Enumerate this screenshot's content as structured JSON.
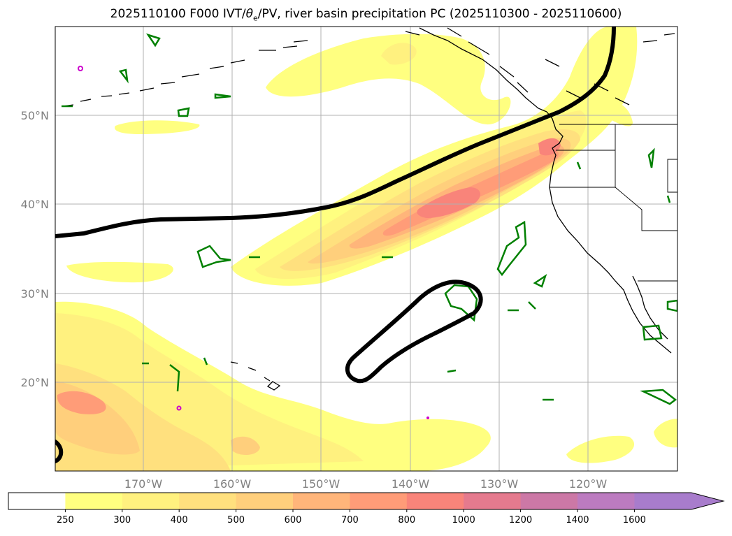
{
  "figure": {
    "title_pre": "2025110100 F000 IVT/",
    "title_theta": "θ",
    "title_sub": "e",
    "title_post": "/PV, river basin precipitation PC (2025110300 - 2025110600)"
  },
  "axes": {
    "lon_labels": [
      "170°W",
      "160°W",
      "150°W",
      "140°W",
      "130°W",
      "120°W"
    ],
    "lat_labels": [
      "50°N",
      "40°N",
      "30°N",
      "20°N"
    ],
    "lon_range": [
      -180,
      -110
    ],
    "lat_range": [
      10,
      60
    ]
  },
  "colorbar": {
    "ticks": [
      "250",
      "300",
      "400",
      "500",
      "600",
      "700",
      "800",
      "1000",
      "1200",
      "1400",
      "1600"
    ],
    "colors": [
      "#ffffff",
      "#ffff80",
      "#fff17f",
      "#ffe07e",
      "#ffcf7c",
      "#ffb57a",
      "#ff9c78",
      "#f9847a",
      "#e57a8e",
      "#cc78a6",
      "#bc7bc0",
      "#a87ccc"
    ],
    "extend": "max"
  },
  "colors": {
    "theta_e_contour": "#000000",
    "pv_contour": "#008000",
    "coastline": "#000000",
    "grid": "#b0b0b0",
    "marker_magenta": "#cc00cc"
  }
}
